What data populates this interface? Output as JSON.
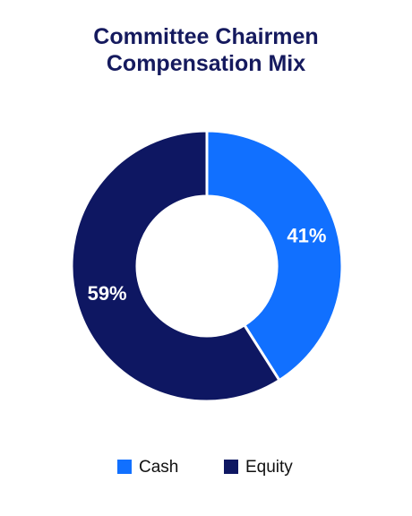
{
  "chart_data": {
    "type": "donut",
    "title": "Committee Chairmen Compensation Mix",
    "categories": [
      "Cash",
      "Equity"
    ],
    "values": [
      41,
      59
    ],
    "value_labels": [
      "41%",
      "59%"
    ],
    "colors": [
      "#1170ff",
      "#0e1762"
    ],
    "legend": "bottom"
  }
}
